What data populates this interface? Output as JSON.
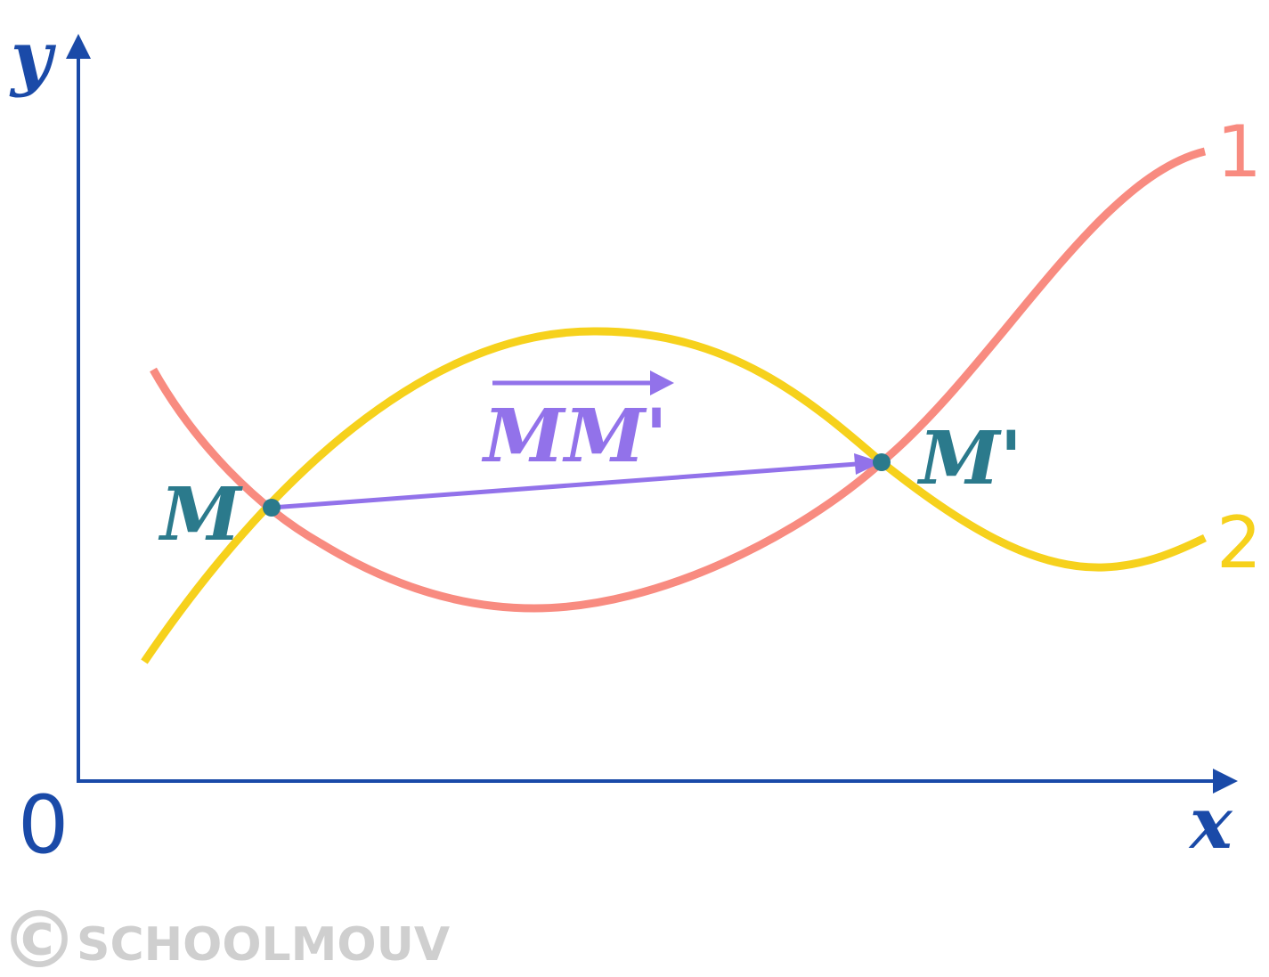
{
  "axes": {
    "x_label": "x",
    "y_label": "y",
    "origin_label": "0",
    "color": "#1a4aa8"
  },
  "curves": [
    {
      "label": "1",
      "color": "#f88b80"
    },
    {
      "label": "2",
      "color": "#f6d11c"
    }
  ],
  "points": {
    "m_label": "M",
    "m_prime_label": "M'",
    "color": "#2b7a8c"
  },
  "vector": {
    "label": "MM'",
    "color": "#9272ea"
  },
  "watermark": {
    "copyright_symbol": "©",
    "text": "SCHOOLMOUV",
    "color": "#cfcfcf"
  }
}
